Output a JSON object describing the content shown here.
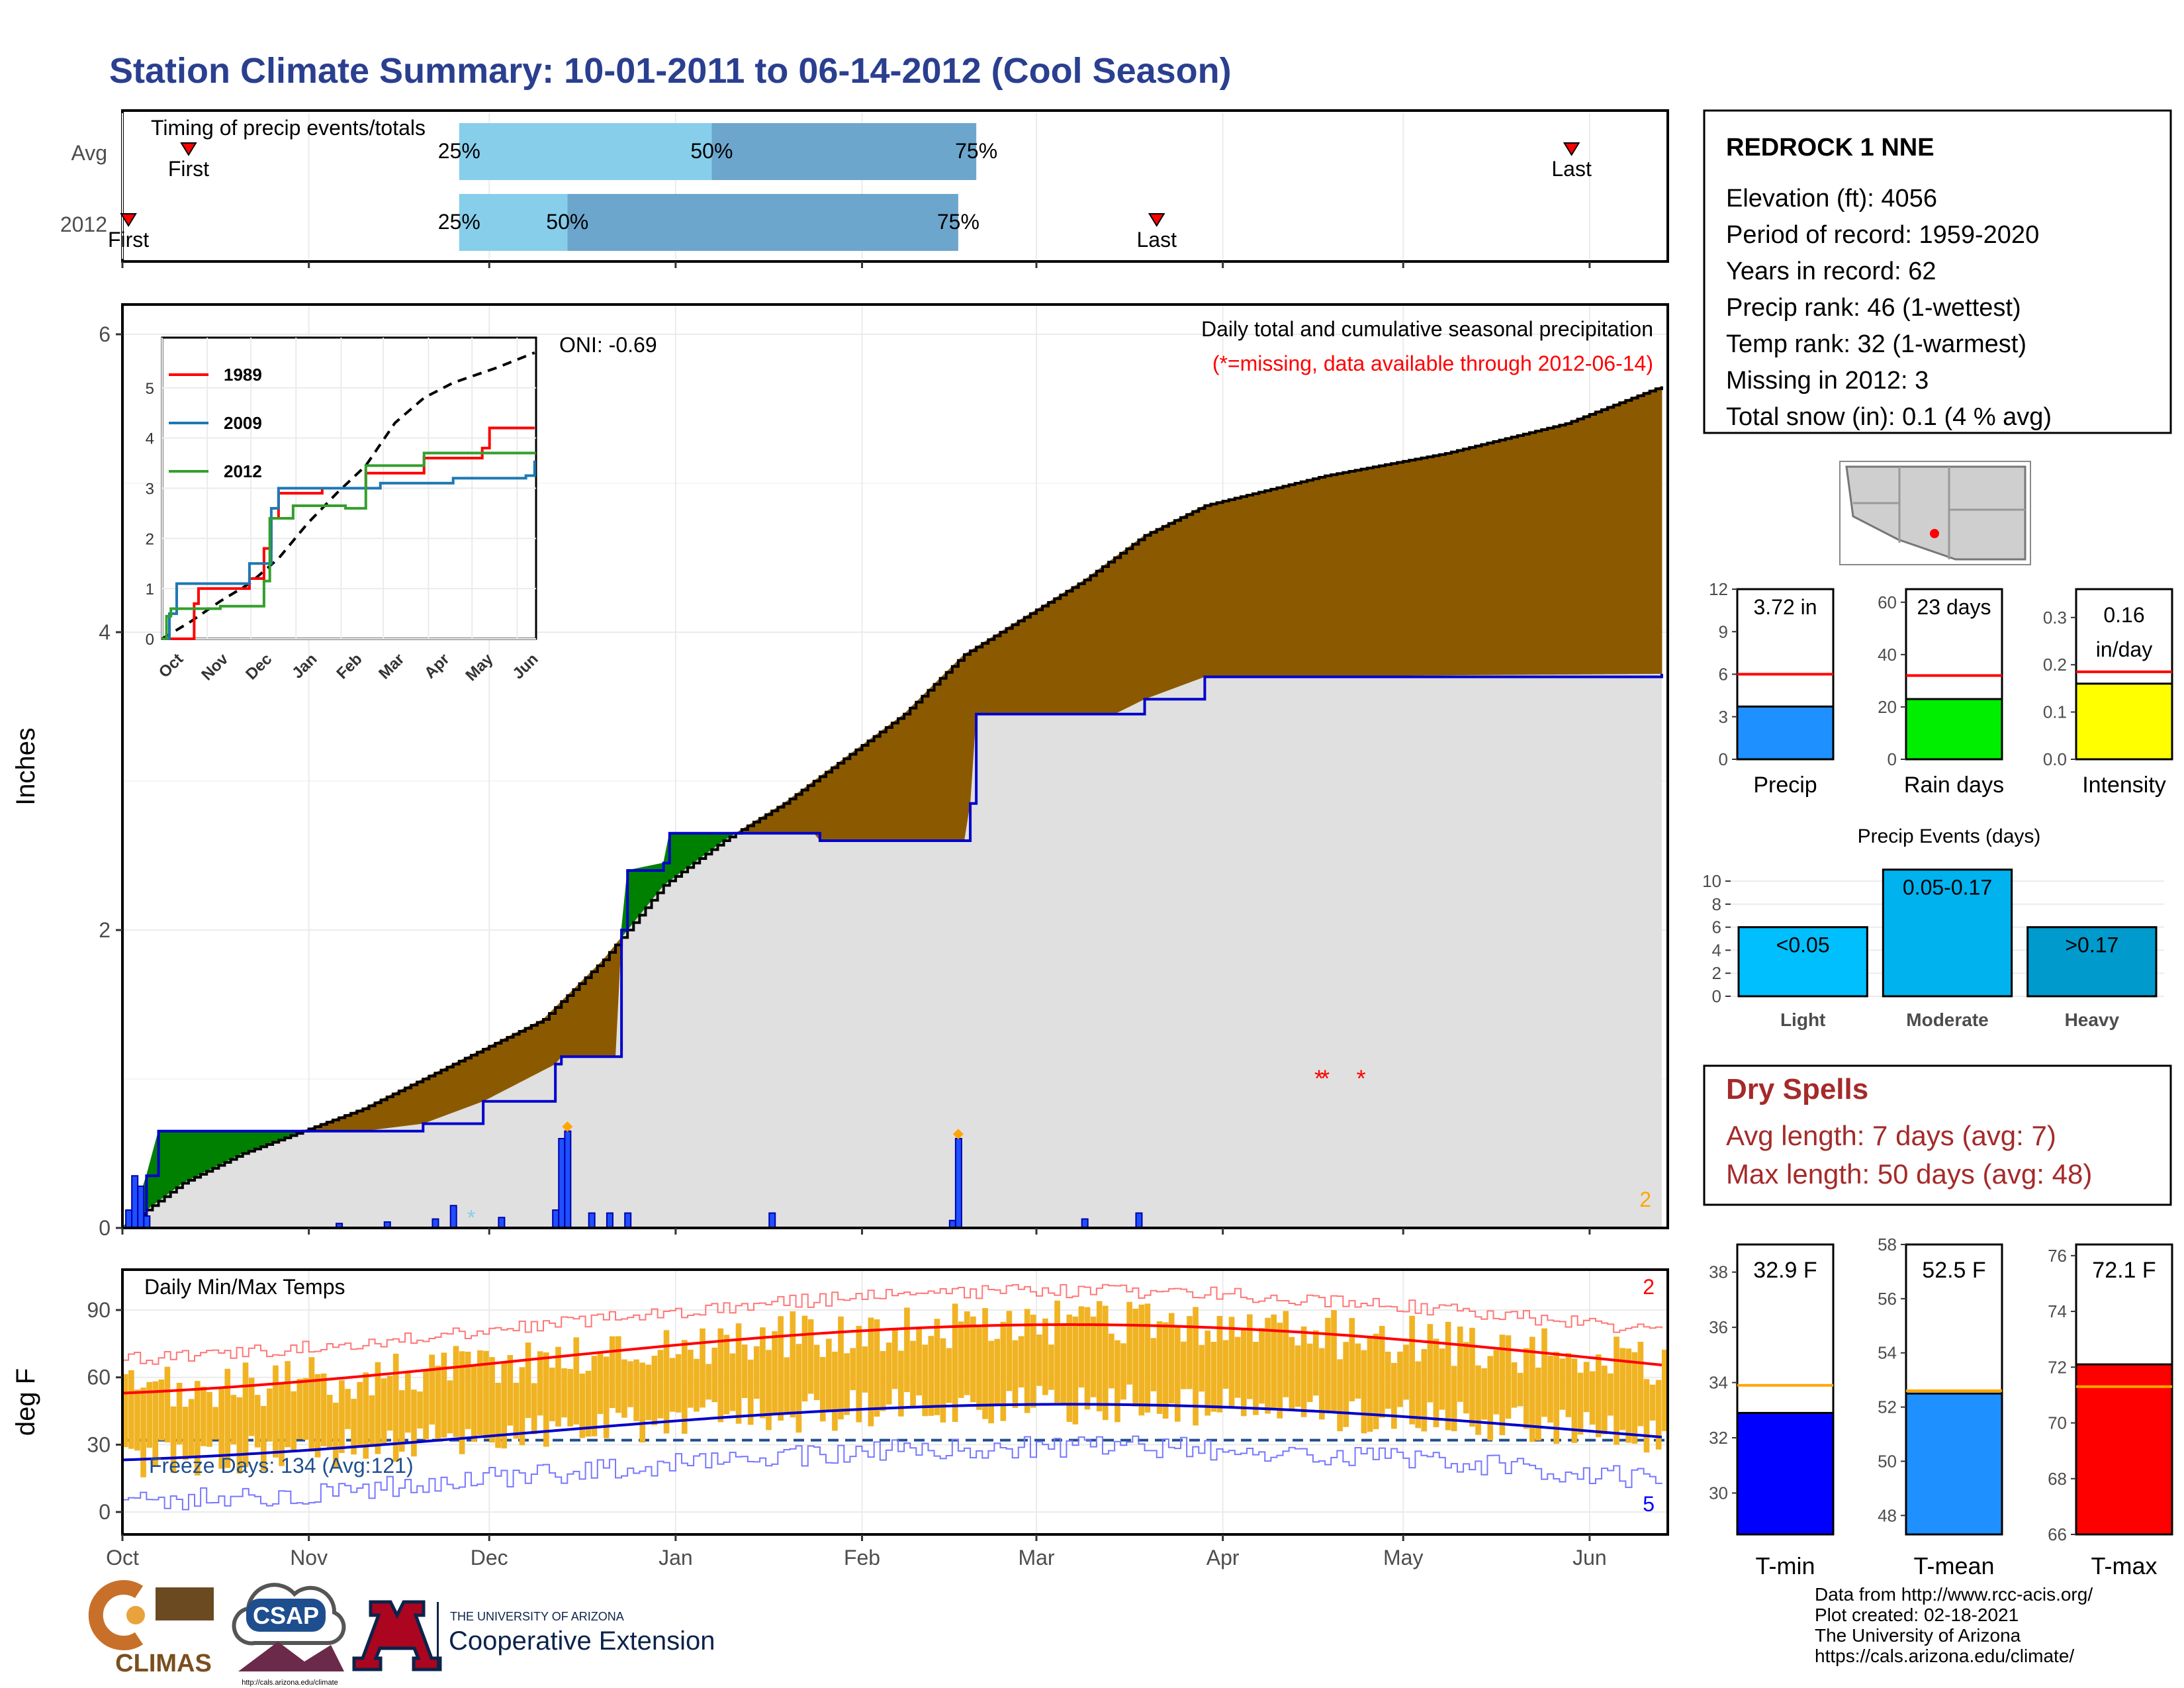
{
  "title": "Station Climate Summary: 10-01-2011 to 06-14-2012 (Cool Season)",
  "colors": {
    "title_blue": "#2a3f8f",
    "light_blue": "#87ceeb",
    "mid_blue": "#6ca6cd",
    "brown": "#8b5a00",
    "green": "#008000",
    "grey_fill": "#e0e0e0",
    "blue_line": "#0000cc",
    "red": "#ff0000",
    "orange": "#ffa500",
    "temp_bar": "#f0b323",
    "dry_spell_red": "#a52a2a"
  },
  "timing_panel": {
    "label": "Timing of precip events/totals",
    "rows": [
      {
        "name": "Avg",
        "first_day": 11,
        "last_day": 241,
        "q25": 56,
        "q50": 98,
        "q75": 142,
        "first_label": "First",
        "last_label": "Last",
        "q25_label": "25%",
        "q50_label": "50%",
        "q75_label": "75%"
      },
      {
        "name": "2012",
        "first_day": 1,
        "last_day": 172,
        "q25": 56,
        "q50": 74,
        "q75": 139,
        "first_label": "First",
        "last_label": "Last",
        "q25_label": "25%",
        "q50_label": "50%",
        "q75_label": "75%"
      }
    ]
  },
  "precip_chart": {
    "title": "Daily total and cumulative seasonal precipitation",
    "subtitle": "(*=missing, data available through 2012-06-14)",
    "oni": "ONI: -0.69",
    "ylabel": "Inches",
    "corner_count": "2",
    "yticks": [
      "0",
      "2",
      "4",
      "6"
    ]
  },
  "inset": {
    "legend": [
      "1989",
      "2009",
      "2012"
    ],
    "yticks": [
      "0",
      "1",
      "2",
      "3",
      "4",
      "5"
    ],
    "xticks": [
      "Oct",
      "Nov",
      "Dec",
      "Jan",
      "Feb",
      "Mar",
      "Apr",
      "May",
      "Jun"
    ]
  },
  "temp_chart": {
    "title": "Daily Min/Max Temps",
    "ylabel": "deg F",
    "freeze_days": "Freeze Days: 134 (Avg:121)",
    "hot_count": "2",
    "cold_count": "5",
    "yticks": [
      "0",
      "30",
      "60",
      "90"
    ]
  },
  "month_labels": [
    "Oct",
    "Nov",
    "Dec",
    "Jan",
    "Feb",
    "Mar",
    "Apr",
    "May",
    "Jun"
  ],
  "station": {
    "name": "REDROCK 1 NNE",
    "lines": [
      "Elevation (ft): 4056",
      "Period of record: 1959-2020",
      "Years in record: 62",
      "Precip rank: 46 (1-wettest)",
      "Temp rank: 32 (1-warmest)",
      "Missing in 2012: 3",
      "Total snow (in): 0.1 (4 % avg)"
    ]
  },
  "mini_bars": [
    {
      "label": "Precip",
      "value_label": "3.72 in",
      "value": 3.72,
      "avg": 6.0,
      "ylim": [
        0,
        12
      ],
      "ticks": [
        "0",
        "3",
        "6",
        "9",
        "12"
      ],
      "color": "#1e90ff"
    },
    {
      "label": "Rain days",
      "value_label": "23 days",
      "value": 23,
      "avg": 32,
      "ylim": [
        0,
        65
      ],
      "ticks": [
        "0",
        "20",
        "40",
        "60"
      ],
      "color": "#00ee00"
    },
    {
      "label": "Intensity",
      "value_label": "0.16 in/day",
      "value": 0.16,
      "avg": 0.185,
      "ylim": [
        0,
        0.36
      ],
      "ticks": [
        "0.0",
        "0.1",
        "0.2",
        "0.3"
      ],
      "color": "#ffff00"
    }
  ],
  "precip_events": {
    "title": "Precip Events (days)",
    "ticks": [
      "0",
      "2",
      "4",
      "6",
      "8",
      "10"
    ],
    "ylim": [
      0,
      11.5
    ],
    "chart_data": {
      "type": "bar",
      "categories": [
        "Light",
        "Moderate",
        "Heavy"
      ],
      "bar_labels": [
        "<0.05",
        "0.05-0.17",
        ">0.17"
      ],
      "values": [
        6,
        11,
        6
      ],
      "colors": [
        "#00bfff",
        "#00b2ee",
        "#009acd"
      ]
    }
  },
  "dry_spells": {
    "title": "Dry Spells",
    "lines": [
      "Avg length: 7 days (avg: 7)",
      "Max length: 50 days (avg: 48)"
    ]
  },
  "temp_bars": [
    {
      "label": "T-min",
      "value_label": "32.9 F",
      "value": 32.9,
      "avg": 33.9,
      "ylim": [
        28.5,
        39
      ],
      "ticks": [
        "30",
        "32",
        "34",
        "36",
        "38"
      ],
      "color": "#0000ff"
    },
    {
      "label": "T-mean",
      "value_label": "52.5 F",
      "value": 52.5,
      "avg": 52.6,
      "ylim": [
        47.3,
        58
      ],
      "ticks": [
        "48",
        "50",
        "52",
        "54",
        "56",
        "58"
      ],
      "color": "#1e90ff"
    },
    {
      "label": "T-max",
      "value_label": "72.1 F",
      "value": 72.1,
      "avg": 71.3,
      "ylim": [
        66,
        76.4
      ],
      "ticks": [
        "66",
        "68",
        "70",
        "72",
        "74",
        "76"
      ],
      "color": "#ff0000"
    }
  ],
  "footer": {
    "lines": [
      "Data from http://www.rcc-acis.org/",
      "Plot created: 02-18-2021",
      "The University of Arizona",
      "https://cals.arizona.edu/climate/"
    ]
  },
  "logos": {
    "climas": "CLIMAS",
    "csap": "CSAP",
    "csap_url": "http://cals.arizona.edu/climate",
    "ua_small": "THE UNIVERSITY OF ARIZONA",
    "ua_big": "Cooperative Extension"
  },
  "chart_data": {
    "type": "area",
    "x_unit": "day of season (Oct 1 = 0)",
    "series": [
      {
        "name": "2012",
        "points": [
          [
            0,
            0
          ],
          [
            2,
            0.1
          ],
          [
            4,
            0.35
          ],
          [
            6,
            0.65
          ],
          [
            40,
            0.65
          ],
          [
            50,
            0.7
          ],
          [
            60,
            0.85
          ],
          [
            72,
            1.1
          ],
          [
            73,
            1.15
          ],
          [
            82,
            1.15
          ],
          [
            83,
            2.0
          ],
          [
            84,
            2.4
          ],
          [
            90,
            2.45
          ],
          [
            91,
            2.65
          ],
          [
            100,
            2.65
          ],
          [
            115,
            2.65
          ],
          [
            116,
            2.6
          ],
          [
            126,
            2.6
          ],
          [
            140,
            2.6
          ],
          [
            141,
            2.85
          ],
          [
            142,
            3.45
          ],
          [
            165,
            3.45
          ],
          [
            170,
            3.55
          ],
          [
            180,
            3.7
          ],
          [
            256,
            3.72
          ]
        ]
      },
      {
        "points": [
          [
            0,
            0
          ],
          [
            10,
            0.3
          ],
          [
            20,
            0.5
          ],
          [
            30,
            0.65
          ],
          [
            40,
            0.8
          ],
          [
            50,
            1.0
          ],
          [
            60,
            1.2
          ],
          [
            70,
            1.4
          ],
          [
            80,
            1.8
          ],
          [
            90,
            2.3
          ],
          [
            100,
            2.6
          ],
          [
            110,
            2.85
          ],
          [
            120,
            3.15
          ],
          [
            130,
            3.45
          ],
          [
            140,
            3.85
          ],
          [
            150,
            4.1
          ],
          [
            160,
            4.35
          ],
          [
            170,
            4.65
          ],
          [
            180,
            4.85
          ],
          [
            190,
            4.95
          ],
          [
            200,
            5.05
          ],
          [
            220,
            5.2
          ],
          [
            240,
            5.4
          ],
          [
            256,
            5.65
          ]
        ]
      }
    ],
    "ylim": [
      0,
      6.2
    ],
    "daily_bars": [
      [
        1,
        0.12
      ],
      [
        2,
        0.35
      ],
      [
        3,
        0.28
      ],
      [
        4,
        0.08
      ],
      [
        36,
        0.03
      ],
      [
        44,
        0.04
      ],
      [
        52,
        0.06
      ],
      [
        55,
        0.15
      ],
      [
        63,
        0.07
      ],
      [
        72,
        0.12
      ],
      [
        73,
        0.6
      ],
      [
        74,
        0.65
      ],
      [
        78,
        0.1
      ],
      [
        81,
        0.1
      ],
      [
        84,
        0.1
      ],
      [
        108,
        0.1
      ],
      [
        138,
        0.05
      ],
      [
        139,
        0.6
      ],
      [
        160,
        0.06
      ],
      [
        169,
        0.1
      ]
    ],
    "missing_days": [
      199,
      200,
      206
    ]
  }
}
